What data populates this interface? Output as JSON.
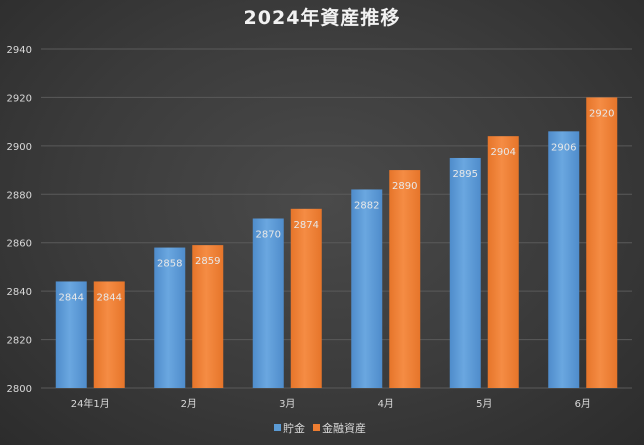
{
  "chart_data": {
    "type": "bar",
    "title": "2024年資産推移",
    "categories": [
      "24年1月",
      "2月",
      "3月",
      "4月",
      "5月",
      "6月"
    ],
    "series": [
      {
        "name": "貯金",
        "values": [
          2844,
          2858,
          2870,
          2882,
          2895,
          2906
        ],
        "color": "#5b9bd5"
      },
      {
        "name": "金融資産",
        "values": [
          2844,
          2859,
          2874,
          2890,
          2904,
          2920
        ],
        "color": "#ed7d31"
      }
    ],
    "ylim": [
      2800,
      2940
    ],
    "yticks": [
      2800,
      2820,
      2840,
      2860,
      2880,
      2900,
      2920,
      2940
    ],
    "grid": true,
    "legend": "bottom",
    "data_labels": true
  }
}
